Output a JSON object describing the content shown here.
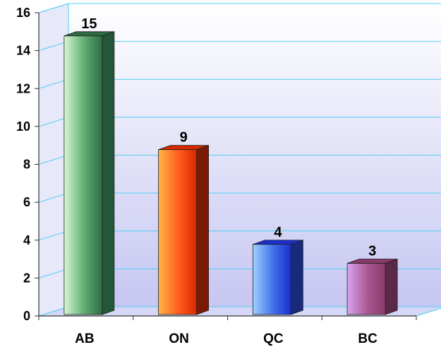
{
  "chart_data": {
    "type": "bar",
    "categories": [
      "AB",
      "ON",
      "QC",
      "BC"
    ],
    "values": [
      15,
      9,
      4,
      3
    ],
    "data_labels": [
      "15",
      "9",
      "4",
      "3"
    ],
    "title": "",
    "xlabel": "",
    "ylabel": "",
    "ylim": [
      0,
      16
    ],
    "yticks": [
      "0",
      "2",
      "4",
      "6",
      "8",
      "10",
      "12",
      "14",
      "16"
    ],
    "grid": true,
    "legend": "none",
    "style": "3d",
    "bar_colors": [
      {
        "light": "#d4f7d2",
        "mid": "#5daa6e",
        "dark": "#2e6b45",
        "side": "#24563a"
      },
      {
        "light": "#ffb347",
        "mid": "#ff5a1f",
        "dark": "#d92800",
        "side": "#7a1a05"
      },
      {
        "light": "#9fd0ff",
        "mid": "#3f6fe8",
        "dark": "#1a2fcc",
        "side": "#182a7a"
      },
      {
        "light": "#d7a4f0",
        "mid": "#a8568e",
        "dark": "#8a3a6a",
        "side": "#5a2848"
      }
    ],
    "plot_bg_top": "#ffffff",
    "plot_bg_bottom": "#c6c6f2",
    "grid_color": "#4fd0f0"
  }
}
